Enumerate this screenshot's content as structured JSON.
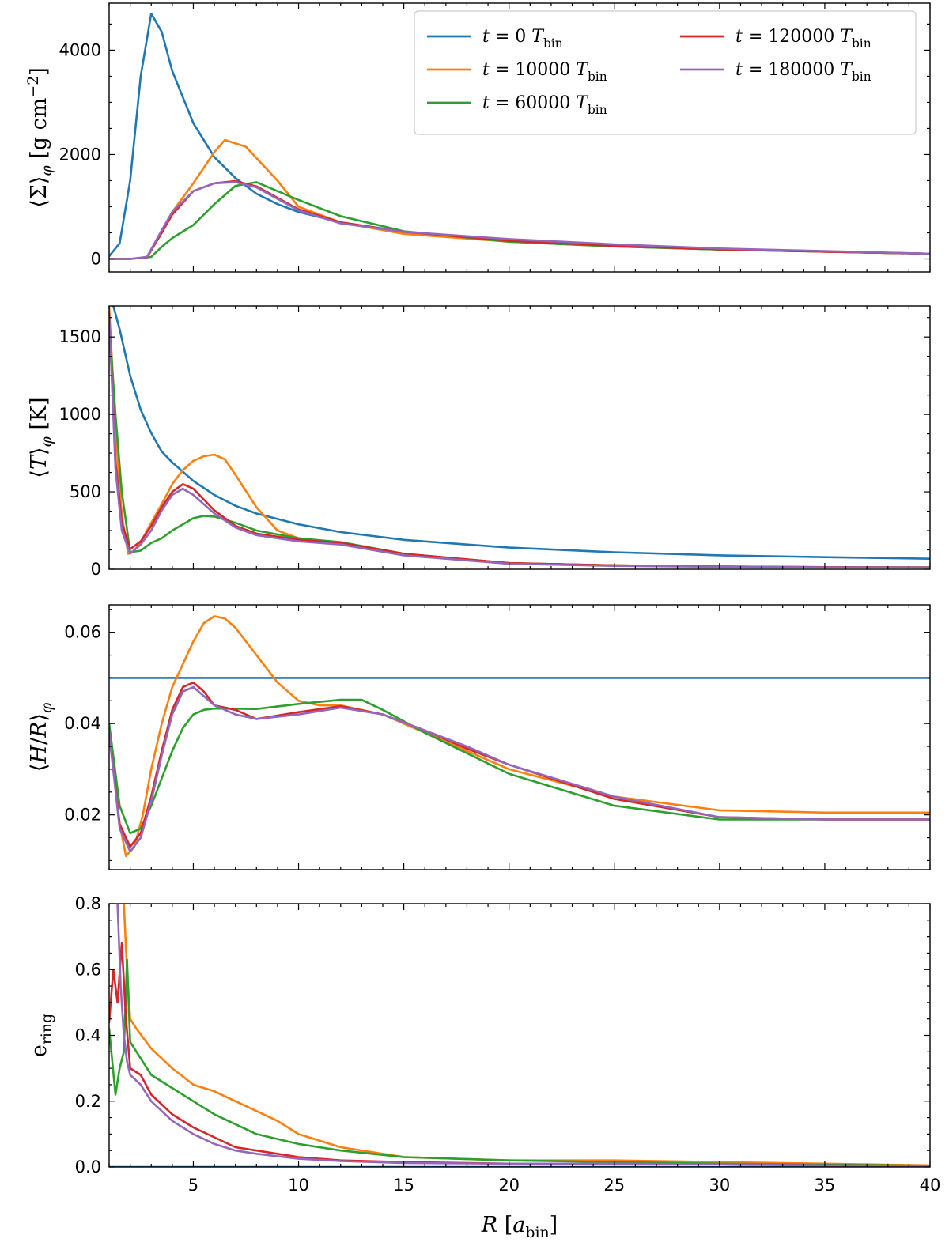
{
  "chart_data": {
    "type": "line",
    "xlabel": "R [a_bin]",
    "xlim": [
      1,
      40
    ],
    "xticks": [
      5,
      10,
      15,
      20,
      25,
      30,
      35,
      40
    ],
    "series_colors": {
      "t0": "#1f77b4",
      "t10000": "#ff7f0e",
      "t60000": "#2ca02c",
      "t120000": "#d62728",
      "t180000": "#9467bd"
    },
    "legend": {
      "location": "top-right of top panel",
      "entries": [
        {
          "key": "t0",
          "text": "t = 0 T_bin"
        },
        {
          "key": "t10000",
          "text": "t = 10000 T_bin"
        },
        {
          "key": "t60000",
          "text": "t = 60000 T_bin"
        },
        {
          "key": "t120000",
          "text": "t = 120000 T_bin"
        },
        {
          "key": "t180000",
          "text": "t = 180000 T_bin"
        }
      ]
    },
    "panels": [
      {
        "id": "sigma",
        "ylabel": "⟨Σ⟩_φ [g cm⁻²]",
        "ylim": [
          -250,
          4900
        ],
        "yticks": [
          0,
          2000,
          4000
        ],
        "series": [
          {
            "key": "t0",
            "x": [
              1,
              1.5,
              2,
              2.5,
              3,
              3.5,
              4,
              5,
              6,
              7,
              8,
              9,
              10,
              12,
              15,
              20,
              25,
              30,
              35,
              40
            ],
            "y": [
              50,
              300,
              1500,
              3500,
              4700,
              4350,
              3600,
              2600,
              1950,
              1550,
              1250,
              1050,
              900,
              700,
              520,
              350,
              250,
              180,
              140,
              100
            ]
          },
          {
            "key": "t10000",
            "x": [
              1,
              2,
              2.8,
              3.5,
              4,
              5,
              6,
              6.5,
              7.5,
              9,
              10,
              12,
              15,
              20,
              25,
              30,
              35,
              40
            ],
            "y": [
              0,
              0,
              30,
              500,
              900,
              1450,
              2050,
              2280,
              2150,
              1500,
              1000,
              700,
              480,
              330,
              240,
              180,
              140,
              100
            ]
          },
          {
            "key": "t60000",
            "x": [
              1,
              2,
              3,
              3.5,
              4,
              5,
              6,
              7,
              8,
              10,
              12,
              15,
              20,
              25,
              30,
              35,
              40
            ],
            "y": [
              0,
              0,
              40,
              230,
              400,
              650,
              1050,
              1400,
              1470,
              1130,
              820,
              530,
              330,
              240,
              180,
              140,
              100
            ]
          },
          {
            "key": "t120000",
            "x": [
              1,
              2,
              2.8,
              3.5,
              4,
              5,
              6,
              7,
              8,
              10,
              12,
              15,
              20,
              25,
              30,
              35,
              40
            ],
            "y": [
              0,
              0,
              30,
              500,
              850,
              1300,
              1450,
              1490,
              1390,
              950,
              700,
              520,
              350,
              250,
              185,
              140,
              100
            ]
          },
          {
            "key": "t180000",
            "x": [
              1,
              2,
              2.8,
              3.5,
              4,
              5,
              6,
              7,
              8,
              10,
              12,
              15,
              20,
              25,
              30,
              35,
              40
            ],
            "y": [
              0,
              0,
              40,
              550,
              900,
              1300,
              1450,
              1470,
              1370,
              930,
              680,
              520,
              380,
              280,
              200,
              150,
              100
            ]
          }
        ]
      },
      {
        "id": "temperature",
        "ylabel": "⟨T⟩_φ [K]",
        "ylim": [
          0,
          1700
        ],
        "yticks": [
          0,
          500,
          1000,
          1500
        ],
        "series": [
          {
            "key": "t0",
            "x": [
              1.2,
              1.5,
              2,
              2.5,
              3,
              3.5,
              4,
              5,
              6,
              7,
              8,
              10,
              12,
              15,
              20,
              25,
              30,
              35,
              40
            ],
            "y": [
              1700,
              1550,
              1250,
              1030,
              880,
              760,
              690,
              570,
              480,
              410,
              360,
              290,
              240,
              190,
              140,
              110,
              90,
              78,
              68
            ]
          },
          {
            "key": "t10000",
            "x": [
              1,
              1.3,
              1.6,
              1.9,
              2.2,
              2.6,
              3,
              3.5,
              4,
              4.5,
              5,
              5.5,
              6,
              6.5,
              7,
              8,
              9,
              10,
              12,
              15,
              20,
              25,
              30,
              35,
              40
            ],
            "y": [
              1700,
              900,
              350,
              100,
              120,
              200,
              300,
              420,
              550,
              640,
              700,
              730,
              740,
              710,
              610,
              400,
              250,
              200,
              170,
              100,
              40,
              25,
              18,
              14,
              12
            ]
          },
          {
            "key": "t60000",
            "x": [
              1,
              1.3,
              1.6,
              2,
              2.5,
              3,
              3.5,
              4,
              4.5,
              5,
              5.5,
              6,
              7,
              8,
              10,
              12,
              15,
              20,
              25,
              30,
              35,
              40
            ],
            "y": [
              1600,
              1000,
              500,
              110,
              120,
              170,
              200,
              250,
              290,
              330,
              345,
              340,
              300,
              250,
              200,
              175,
              100,
              40,
              25,
              18,
              14,
              12
            ]
          },
          {
            "key": "t120000",
            "x": [
              1,
              1.3,
              1.6,
              2,
              2.5,
              3,
              3.5,
              4,
              4.5,
              5,
              6,
              7,
              8,
              10,
              12,
              15,
              20,
              25,
              30,
              35,
              40
            ],
            "y": [
              1650,
              700,
              300,
              130,
              180,
              280,
              400,
              500,
              550,
              520,
              380,
              280,
              230,
              190,
              170,
              100,
              40,
              25,
              18,
              14,
              12
            ]
          },
          {
            "key": "t180000",
            "x": [
              1,
              1.3,
              1.6,
              2,
              2.5,
              3,
              3.5,
              4,
              4.5,
              5,
              6,
              7,
              8,
              10,
              12,
              15,
              20,
              25,
              30,
              35,
              40
            ],
            "y": [
              1650,
              650,
              250,
              100,
              160,
              250,
              380,
              480,
              520,
              480,
              360,
              270,
              220,
              180,
              160,
              90,
              35,
              22,
              16,
              13,
              11
            ]
          }
        ]
      },
      {
        "id": "aspect",
        "ylabel": "⟨H/R⟩_φ",
        "ylim": [
          0.008,
          0.066
        ],
        "yticks": [
          0.02,
          0.04,
          0.06
        ],
        "series": [
          {
            "key": "t0",
            "x": [
              1,
              40
            ],
            "y": [
              0.05,
              0.05
            ]
          },
          {
            "key": "t10000",
            "x": [
              1,
              1.5,
              1.8,
              2.2,
              2.6,
              3,
              3.5,
              4,
              4.5,
              5,
              5.5,
              6,
              6.5,
              7,
              8,
              9,
              10,
              11,
              12,
              14,
              16,
              18,
              20,
              25,
              30,
              35,
              40
            ],
            "y": [
              0.038,
              0.018,
              0.011,
              0.013,
              0.02,
              0.03,
              0.04,
              0.048,
              0.053,
              0.058,
              0.062,
              0.0635,
              0.063,
              0.061,
              0.055,
              0.049,
              0.045,
              0.044,
              0.044,
              0.042,
              0.038,
              0.034,
              0.03,
              0.024,
              0.021,
              0.0205,
              0.0205
            ]
          },
          {
            "key": "t60000",
            "x": [
              1,
              1.5,
              2,
              2.5,
              3,
              3.5,
              4,
              4.5,
              5,
              5.5,
              6,
              8,
              10,
              12,
              13,
              14,
              16,
              18,
              20,
              25,
              30,
              35,
              40
            ],
            "y": [
              0.04,
              0.022,
              0.016,
              0.017,
              0.022,
              0.028,
              0.034,
              0.039,
              0.042,
              0.043,
              0.0433,
              0.0432,
              0.0443,
              0.0452,
              0.0452,
              0.043,
              0.038,
              0.0335,
              0.029,
              0.022,
              0.019,
              0.019,
              0.019
            ]
          },
          {
            "key": "t120000",
            "x": [
              1,
              1.5,
              2,
              2.5,
              3,
              3.5,
              4,
              4.5,
              5,
              5.5,
              6,
              7,
              8,
              10,
              12,
              14,
              16,
              18,
              20,
              25,
              30,
              35,
              40
            ],
            "y": [
              0.038,
              0.018,
              0.013,
              0.016,
              0.024,
              0.034,
              0.043,
              0.048,
              0.049,
              0.047,
              0.044,
              0.043,
              0.041,
              0.0425,
              0.0438,
              0.042,
              0.0385,
              0.0345,
              0.031,
              0.0235,
              0.0195,
              0.019,
              0.019
            ]
          },
          {
            "key": "t180000",
            "x": [
              1,
              1.5,
              2,
              2.5,
              3,
              3.5,
              4,
              4.5,
              5,
              5.5,
              6,
              7,
              8,
              10,
              12,
              14,
              16,
              18,
              20,
              25,
              30,
              35,
              40
            ],
            "y": [
              0.038,
              0.017,
              0.012,
              0.015,
              0.023,
              0.033,
              0.042,
              0.047,
              0.048,
              0.046,
              0.044,
              0.042,
              0.041,
              0.042,
              0.0435,
              0.042,
              0.0385,
              0.035,
              0.031,
              0.024,
              0.0195,
              0.019,
              0.019
            ]
          }
        ]
      },
      {
        "id": "eccentricity",
        "ylabel": "e_ring",
        "ylim": [
          0,
          0.8
        ],
        "yticks": [
          0.0,
          0.2,
          0.4,
          0.6,
          0.8
        ],
        "series": [
          {
            "key": "t0",
            "x": [
              1,
              40
            ],
            "y": [
              0,
              0
            ]
          },
          {
            "key": "t10000",
            "x": [
              1.7,
              1.85,
              2,
              2.3,
              3,
              4,
              5,
              6,
              7,
              8,
              9,
              10,
              12,
              15,
              20,
              25,
              30,
              35,
              40
            ],
            "y": [
              0.8,
              0.6,
              0.45,
              0.42,
              0.36,
              0.3,
              0.25,
              0.23,
              0.2,
              0.17,
              0.14,
              0.1,
              0.06,
              0.03,
              0.02,
              0.02,
              0.015,
              0.01,
              0.005
            ]
          },
          {
            "key": "t60000",
            "x": [
              1,
              1.3,
              1.5,
              1.7,
              1.85,
              2,
              2.5,
              3,
              4,
              5,
              6,
              7,
              8,
              10,
              12,
              15,
              20,
              25,
              30,
              35,
              40
            ],
            "y": [
              0.42,
              0.22,
              0.3,
              0.35,
              0.63,
              0.38,
              0.33,
              0.28,
              0.24,
              0.2,
              0.16,
              0.13,
              0.1,
              0.07,
              0.05,
              0.03,
              0.02,
              0.015,
              0.01,
              0.007,
              0.004
            ]
          },
          {
            "key": "t120000",
            "x": [
              1,
              1.2,
              1.4,
              1.6,
              1.8,
              2,
              2.5,
              3,
              4,
              5,
              6,
              7,
              8,
              10,
              12,
              15,
              20,
              25,
              30,
              35,
              40
            ],
            "y": [
              0.44,
              0.6,
              0.5,
              0.68,
              0.45,
              0.3,
              0.28,
              0.22,
              0.16,
              0.12,
              0.09,
              0.06,
              0.05,
              0.03,
              0.02,
              0.015,
              0.01,
              0.01,
              0.008,
              0.005,
              0.003
            ]
          },
          {
            "key": "t180000",
            "x": [
              1.4,
              1.55,
              1.7,
              1.85,
              2,
              2.5,
              3,
              4,
              5,
              6,
              7,
              8,
              10,
              12,
              15,
              20,
              25,
              30,
              35,
              40
            ],
            "y": [
              0.8,
              0.55,
              0.4,
              0.32,
              0.28,
              0.25,
              0.2,
              0.14,
              0.1,
              0.07,
              0.05,
              0.04,
              0.025,
              0.018,
              0.012,
              0.01,
              0.01,
              0.008,
              0.005,
              0.003
            ]
          }
        ]
      }
    ]
  }
}
